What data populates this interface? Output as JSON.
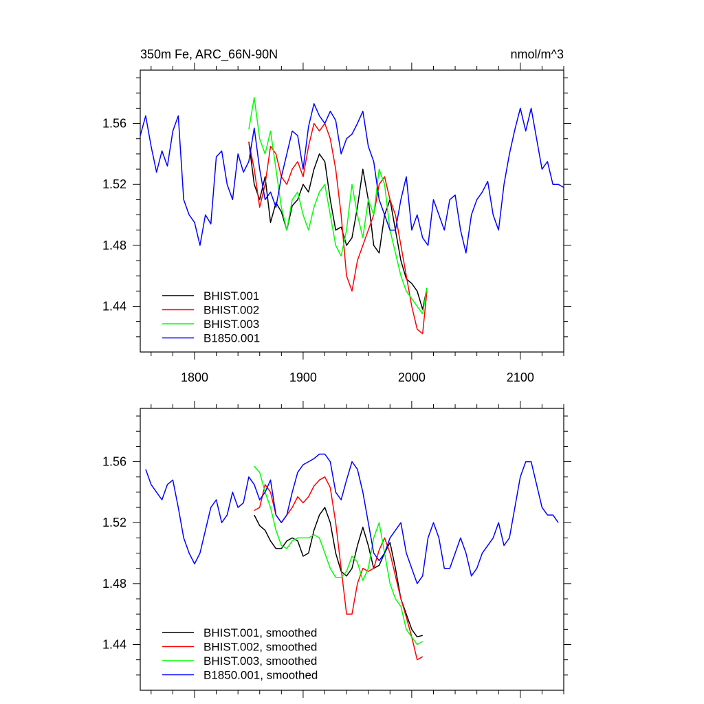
{
  "figure": {
    "title_left": "350m Fe, ARC_66N-90N",
    "title_right": "nmol/m^3"
  },
  "chart_data": [
    {
      "type": "line",
      "panel": "top",
      "xlim": [
        1750,
        2140
      ],
      "ylim": [
        1.41,
        1.595
      ],
      "x_ticks": [
        1800,
        1900,
        2000,
        2100
      ],
      "y_ticks": [
        1.44,
        1.48,
        1.52,
        1.56
      ],
      "y_tick_labels": [
        "1.44",
        "1.48",
        "1.52",
        "1.56"
      ],
      "x_tick_labels": [
        "1800",
        "1900",
        "2000",
        "2100"
      ],
      "legend_position": "bottom-left",
      "series": [
        {
          "name": "BHIST.001",
          "color": "#000000",
          "x": [
            1850,
            1855,
            1860,
            1865,
            1870,
            1875,
            1880,
            1885,
            1890,
            1895,
            1900,
            1905,
            1910,
            1915,
            1920,
            1925,
            1930,
            1935,
            1940,
            1945,
            1950,
            1955,
            1960,
            1965,
            1970,
            1975,
            1980,
            1985,
            1990,
            1995,
            2000,
            2005,
            2010,
            2014
          ],
          "y": [
            1.548,
            1.52,
            1.51,
            1.525,
            1.495,
            1.508,
            1.502,
            1.49,
            1.506,
            1.51,
            1.52,
            1.515,
            1.53,
            1.54,
            1.535,
            1.51,
            1.49,
            1.492,
            1.48,
            1.485,
            1.505,
            1.53,
            1.51,
            1.48,
            1.475,
            1.5,
            1.51,
            1.49,
            1.47,
            1.458,
            1.455,
            1.45,
            1.438,
            1.452
          ]
        },
        {
          "name": "BHIST.002",
          "color": "#ff0000",
          "x": [
            1850,
            1855,
            1860,
            1865,
            1870,
            1875,
            1880,
            1885,
            1890,
            1895,
            1900,
            1905,
            1910,
            1915,
            1920,
            1925,
            1930,
            1935,
            1940,
            1945,
            1950,
            1955,
            1960,
            1965,
            1970,
            1975,
            1980,
            1985,
            1990,
            1995,
            2000,
            2005,
            2010,
            2014
          ],
          "y": [
            1.548,
            1.53,
            1.505,
            1.52,
            1.545,
            1.54,
            1.525,
            1.52,
            1.53,
            1.535,
            1.525,
            1.545,
            1.56,
            1.555,
            1.56,
            1.55,
            1.53,
            1.5,
            1.46,
            1.45,
            1.47,
            1.48,
            1.49,
            1.5,
            1.52,
            1.525,
            1.51,
            1.5,
            1.48,
            1.46,
            1.44,
            1.425,
            1.422,
            1.45
          ]
        },
        {
          "name": "BHIST.003",
          "color": "#00ff00",
          "x": [
            1850,
            1855,
            1860,
            1865,
            1870,
            1875,
            1880,
            1885,
            1890,
            1895,
            1900,
            1905,
            1910,
            1915,
            1920,
            1925,
            1930,
            1935,
            1940,
            1945,
            1950,
            1955,
            1960,
            1965,
            1970,
            1975,
            1980,
            1985,
            1990,
            1995,
            2000,
            2005,
            2010,
            2014
          ],
          "y": [
            1.556,
            1.577,
            1.55,
            1.54,
            1.555,
            1.53,
            1.505,
            1.49,
            1.51,
            1.515,
            1.5,
            1.49,
            1.505,
            1.515,
            1.52,
            1.5,
            1.48,
            1.473,
            1.49,
            1.52,
            1.5,
            1.485,
            1.51,
            1.5,
            1.53,
            1.52,
            1.49,
            1.475,
            1.46,
            1.45,
            1.445,
            1.44,
            1.435,
            1.452
          ]
        },
        {
          "name": "B1850.001",
          "color": "#0000ff",
          "x": [
            1750,
            1755,
            1760,
            1765,
            1770,
            1775,
            1780,
            1785,
            1790,
            1795,
            1800,
            1805,
            1810,
            1815,
            1820,
            1825,
            1830,
            1835,
            1840,
            1845,
            1850,
            1855,
            1860,
            1865,
            1870,
            1875,
            1880,
            1885,
            1890,
            1895,
            1900,
            1905,
            1910,
            1915,
            1920,
            1925,
            1930,
            1935,
            1940,
            1945,
            1950,
            1955,
            1960,
            1965,
            1970,
            1975,
            1980,
            1985,
            1990,
            1995,
            2000,
            2005,
            2010,
            2015,
            2020,
            2025,
            2030,
            2035,
            2040,
            2045,
            2050,
            2055,
            2060,
            2065,
            2070,
            2075,
            2080,
            2085,
            2090,
            2095,
            2100,
            2105,
            2110,
            2115,
            2120,
            2125,
            2130,
            2135,
            2140
          ],
          "y": [
            1.552,
            1.565,
            1.545,
            1.528,
            1.542,
            1.532,
            1.555,
            1.565,
            1.51,
            1.5,
            1.495,
            1.48,
            1.5,
            1.494,
            1.538,
            1.542,
            1.52,
            1.51,
            1.54,
            1.528,
            1.535,
            1.557,
            1.53,
            1.51,
            1.515,
            1.505,
            1.525,
            1.54,
            1.555,
            1.552,
            1.53,
            1.558,
            1.573,
            1.565,
            1.56,
            1.568,
            1.562,
            1.54,
            1.55,
            1.553,
            1.56,
            1.568,
            1.545,
            1.535,
            1.51,
            1.5,
            1.49,
            1.49,
            1.51,
            1.525,
            1.49,
            1.5,
            1.485,
            1.48,
            1.51,
            1.5,
            1.49,
            1.51,
            1.513,
            1.49,
            1.475,
            1.5,
            1.51,
            1.515,
            1.522,
            1.5,
            1.49,
            1.52,
            1.54,
            1.556,
            1.57,
            1.555,
            1.57,
            1.55,
            1.53,
            1.535,
            1.52,
            1.52,
            1.518
          ]
        }
      ]
    },
    {
      "type": "line",
      "panel": "bottom",
      "xlim": [
        1750,
        2140
      ],
      "ylim": [
        1.41,
        1.595
      ],
      "x_ticks": [
        1800,
        1900,
        2000,
        2100
      ],
      "y_ticks": [
        1.44,
        1.48,
        1.52,
        1.56
      ],
      "y_tick_labels": [
        "1.44",
        "1.48",
        "1.52",
        "1.56"
      ],
      "legend_position": "bottom-left",
      "series": [
        {
          "name": "BHIST.001, smoothed",
          "color": "#000000",
          "x": [
            1855,
            1860,
            1865,
            1870,
            1875,
            1880,
            1885,
            1890,
            1895,
            1900,
            1905,
            1910,
            1915,
            1920,
            1925,
            1930,
            1935,
            1940,
            1945,
            1950,
            1955,
            1960,
            1965,
            1970,
            1975,
            1980,
            1985,
            1990,
            1995,
            2000,
            2005,
            2010
          ],
          "y": [
            1.525,
            1.518,
            1.515,
            1.508,
            1.503,
            1.503,
            1.508,
            1.51,
            1.508,
            1.498,
            1.5,
            1.515,
            1.525,
            1.53,
            1.52,
            1.5,
            1.488,
            1.485,
            1.49,
            1.505,
            1.517,
            1.505,
            1.49,
            1.492,
            1.5,
            1.507,
            1.49,
            1.47,
            1.46,
            1.45,
            1.445,
            1.446
          ]
        },
        {
          "name": "BHIST.002, smoothed",
          "color": "#ff0000",
          "x": [
            1855,
            1860,
            1865,
            1870,
            1875,
            1880,
            1885,
            1890,
            1895,
            1900,
            1905,
            1910,
            1915,
            1920,
            1925,
            1930,
            1935,
            1940,
            1945,
            1950,
            1955,
            1960,
            1965,
            1970,
            1975,
            1980,
            1985,
            1990,
            1995,
            2000,
            2005,
            2010
          ],
          "y": [
            1.528,
            1.53,
            1.545,
            1.54,
            1.525,
            1.52,
            1.525,
            1.53,
            1.537,
            1.533,
            1.537,
            1.544,
            1.548,
            1.55,
            1.543,
            1.52,
            1.49,
            1.46,
            1.46,
            1.48,
            1.49,
            1.488,
            1.49,
            1.502,
            1.51,
            1.5,
            1.485,
            1.47,
            1.458,
            1.445,
            1.43,
            1.432
          ]
        },
        {
          "name": "BHIST.003, smoothed",
          "color": "#00ff00",
          "x": [
            1855,
            1860,
            1865,
            1870,
            1875,
            1880,
            1885,
            1890,
            1895,
            1900,
            1905,
            1910,
            1915,
            1920,
            1925,
            1930,
            1935,
            1940,
            1945,
            1950,
            1955,
            1960,
            1965,
            1970,
            1975,
            1980,
            1985,
            1990,
            1995,
            2000,
            2005,
            2010
          ],
          "y": [
            1.557,
            1.553,
            1.54,
            1.53,
            1.515,
            1.505,
            1.503,
            1.508,
            1.51,
            1.51,
            1.51,
            1.512,
            1.51,
            1.5,
            1.49,
            1.484,
            1.484,
            1.488,
            1.498,
            1.494,
            1.482,
            1.49,
            1.51,
            1.52,
            1.5,
            1.48,
            1.47,
            1.465,
            1.45,
            1.445,
            1.44,
            1.442
          ]
        },
        {
          "name": "B1850.001, smoothed",
          "color": "#0000ff",
          "x": [
            1755,
            1760,
            1765,
            1770,
            1775,
            1780,
            1785,
            1790,
            1795,
            1800,
            1805,
            1810,
            1815,
            1820,
            1825,
            1830,
            1835,
            1840,
            1845,
            1850,
            1855,
            1860,
            1865,
            1870,
            1875,
            1880,
            1885,
            1890,
            1895,
            1900,
            1905,
            1910,
            1915,
            1920,
            1925,
            1930,
            1935,
            1940,
            1945,
            1950,
            1955,
            1960,
            1965,
            1970,
            1975,
            1980,
            1985,
            1990,
            1995,
            2000,
            2005,
            2010,
            2015,
            2020,
            2025,
            2030,
            2035,
            2040,
            2045,
            2050,
            2055,
            2060,
            2065,
            2070,
            2075,
            2080,
            2085,
            2090,
            2095,
            2100,
            2105,
            2110,
            2115,
            2120,
            2125,
            2130,
            2135
          ],
          "y": [
            1.555,
            1.545,
            1.54,
            1.535,
            1.545,
            1.548,
            1.53,
            1.51,
            1.5,
            1.493,
            1.5,
            1.515,
            1.53,
            1.535,
            1.52,
            1.525,
            1.54,
            1.53,
            1.533,
            1.55,
            1.545,
            1.535,
            1.54,
            1.548,
            1.525,
            1.52,
            1.525,
            1.54,
            1.553,
            1.558,
            1.56,
            1.562,
            1.565,
            1.565,
            1.56,
            1.54,
            1.535,
            1.548,
            1.56,
            1.555,
            1.54,
            1.52,
            1.5,
            1.495,
            1.5,
            1.51,
            1.515,
            1.52,
            1.5,
            1.49,
            1.48,
            1.485,
            1.51,
            1.52,
            1.51,
            1.49,
            1.49,
            1.5,
            1.51,
            1.5,
            1.485,
            1.49,
            1.5,
            1.505,
            1.51,
            1.52,
            1.505,
            1.51,
            1.53,
            1.55,
            1.56,
            1.56,
            1.545,
            1.53,
            1.525,
            1.525,
            1.52
          ]
        }
      ]
    }
  ]
}
